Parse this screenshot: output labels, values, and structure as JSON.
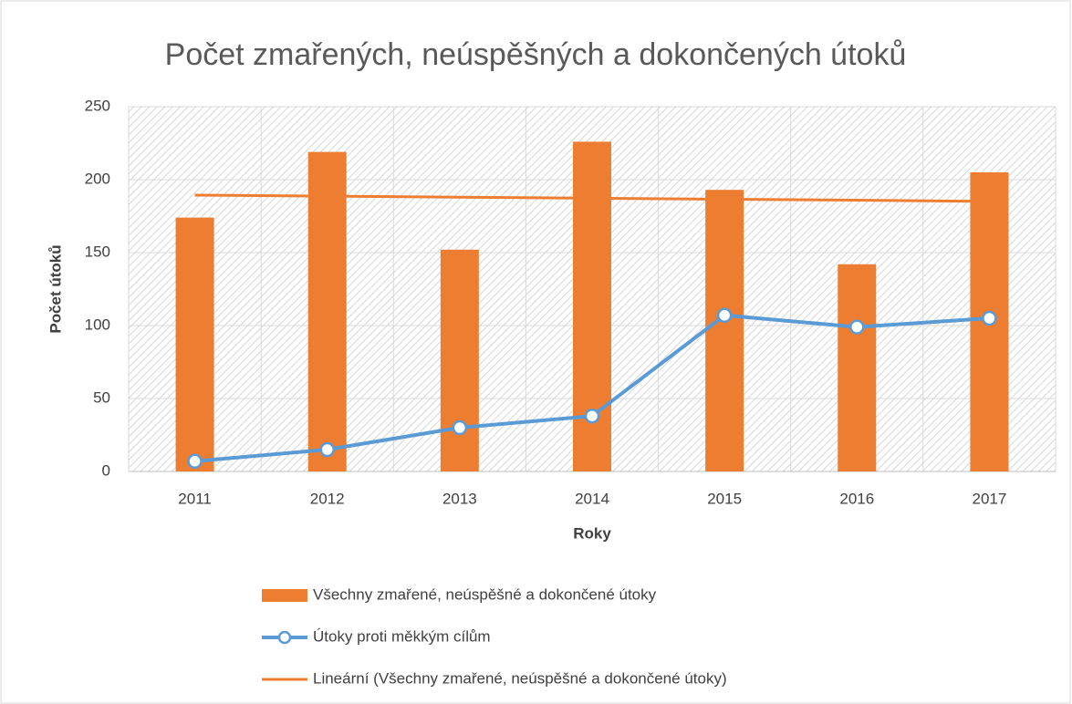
{
  "chart_data": {
    "type": "bar",
    "title": "Počet zmařených, neúspěšných a dokončených útoků",
    "xlabel": "Roky",
    "ylabel": "Počet útoků",
    "categories": [
      "2011",
      "2012",
      "2013",
      "2014",
      "2015",
      "2016",
      "2017"
    ],
    "series": [
      {
        "name": "Všechny zmařené, neúspěšné a dokončené útoky",
        "type": "bar",
        "color": "#ed7d31",
        "values": [
          174,
          219,
          152,
          226,
          193,
          142,
          205
        ]
      },
      {
        "name": "Útoky proti měkkým cílům",
        "type": "line",
        "color": "#5b9bd5",
        "values": [
          7,
          15,
          30,
          38,
          107,
          99,
          105
        ]
      },
      {
        "name": "Lineární (Všechny zmařené, neúspěšné a dokončené útoky)",
        "type": "trend",
        "color": "#ed7d31",
        "values": [
          189.4,
          188.7,
          188.0,
          187.3,
          186.6,
          185.9,
          185.1
        ]
      }
    ],
    "ylim": [
      0,
      250
    ],
    "yticks": [
      0,
      50,
      100,
      150,
      200,
      250
    ],
    "grid": true
  }
}
